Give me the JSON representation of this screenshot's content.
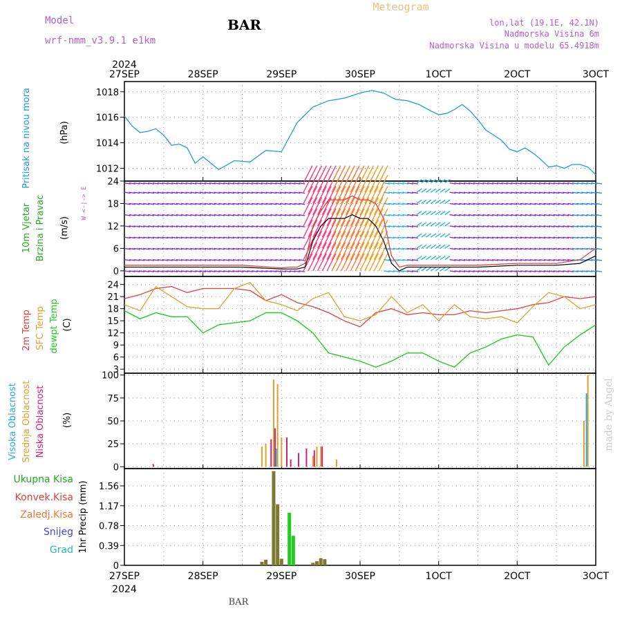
{
  "header": {
    "model_label": "Model",
    "model_name": "wrf-nmm_v3.9.1 e1km",
    "station": "BAR",
    "product": "Meteogram",
    "location": "lon,lat (19.1E, 42.1N)",
    "altitude": "Nadmorska Visina 6m",
    "model_altitude": "Nadmorska Visina u modelu 65.4918m"
  },
  "time_axis": {
    "year": "2024",
    "labels": [
      "27SEP",
      "28SEP",
      "29SEP",
      "30SEP",
      "1OCT",
      "2OCT",
      "3OCT"
    ]
  },
  "footer": {
    "station": "BAR",
    "watermark": "made by Angel"
  },
  "colors": {
    "pressure": "#1e9be0",
    "wind": "#22aa22",
    "t2m": "#e04040",
    "tsfc": "#e0a030",
    "dewpt": "#22cc22",
    "cloud_high": "#2aa8e0",
    "cloud_mid": "#e0a030",
    "cloud_low": "#d02070"
  },
  "chart_data": [
    {
      "type": "line",
      "panel": "pressure",
      "ylabel_name": "Pritisak na nivou mora",
      "ylabel_unit": "(hPa)",
      "ylim": [
        1011,
        1018.8
      ],
      "yticks": [
        "1012",
        "1014",
        "1016",
        "1018"
      ],
      "grid": true,
      "x": [
        0,
        0.1,
        0.2,
        0.3,
        0.4,
        0.5,
        0.6,
        0.7,
        0.8,
        0.9,
        1.0,
        1.2,
        1.4,
        1.6,
        1.8,
        2.0,
        2.2,
        2.4,
        2.6,
        2.8,
        3.0,
        3.15,
        3.3,
        3.45,
        3.6,
        3.75,
        3.9,
        4.0,
        4.1,
        4.2,
        4.3,
        4.4,
        4.5,
        4.6,
        4.7,
        4.8,
        4.9,
        5.0,
        5.1,
        5.2,
        5.3,
        5.4,
        5.5,
        5.6,
        5.7,
        5.8,
        5.9,
        6.0
      ],
      "series": [
        {
          "name": "",
          "values": [
            1016.1,
            1015.3,
            1014.8,
            1014.9,
            1015.1,
            1014.6,
            1013.8,
            1013.9,
            1013.6,
            1012.4,
            1012.9,
            1011.9,
            1012.6,
            1012.5,
            1013.4,
            1013.3,
            1015.6,
            1016.8,
            1017.3,
            1017.5,
            1017.9,
            1018.1,
            1017.9,
            1017.4,
            1017.3,
            1017.0,
            1016.5,
            1016.2,
            1016.3,
            1016.6,
            1017.0,
            1016.5,
            1015.8,
            1015.0,
            1014.6,
            1014.2,
            1013.5,
            1013.3,
            1013.6,
            1013.2,
            1012.7,
            1012.1,
            1012.2,
            1012.0,
            1012.3,
            1012.3,
            1012.1,
            1011.5
          ]
        }
      ]
    },
    {
      "type": "line",
      "panel": "wind",
      "ylabel_name": "10m Vjetar",
      "ylabel_name2": "Brzina i Pravac",
      "ylabel_unit": "(m/s)",
      "compass": "W <-|-> E",
      "ylim": [
        -1.5,
        24
      ],
      "yticks": [
        "0",
        "6",
        "12",
        "18",
        "24"
      ],
      "grid": true,
      "x": [
        0,
        0.5,
        1.0,
        1.5,
        2.0,
        2.1,
        2.2,
        2.3,
        2.4,
        2.5,
        2.6,
        2.7,
        2.8,
        2.9,
        3.0,
        3.1,
        3.2,
        3.3,
        3.4,
        3.5,
        3.6,
        3.8,
        4.0,
        4.5,
        5.0,
        5.5,
        5.8,
        6.0
      ],
      "series": [
        {
          "name": "",
          "values": [
            1,
            1,
            1,
            1,
            0.5,
            0.5,
            0.5,
            1,
            8,
            12,
            14,
            14,
            14,
            15,
            14,
            14,
            12,
            8,
            2,
            0,
            1,
            1,
            1,
            1,
            1.5,
            1.5,
            2,
            4
          ]
        },
        {
          "name": "",
          "values": [
            1.5,
            1.5,
            1.5,
            1.5,
            0.8,
            1,
            1,
            2,
            12,
            16,
            19,
            19,
            19,
            20,
            19,
            19,
            18,
            14,
            4,
            1,
            1.5,
            1.5,
            1.5,
            1.5,
            2,
            2,
            3,
            6
          ]
        }
      ]
    },
    {
      "type": "line",
      "panel": "temperature",
      "ylabel_names": [
        "2m Temp",
        "SFC Temp",
        "dewpt Temp"
      ],
      "ylabel_unit": "(C)",
      "ylim": [
        2,
        26
      ],
      "yticks": [
        "3",
        "6",
        "9",
        "12",
        "15",
        "18",
        "21",
        "24"
      ],
      "grid": true,
      "x": [
        0,
        0.2,
        0.4,
        0.6,
        0.8,
        1.0,
        1.2,
        1.4,
        1.6,
        1.8,
        2.0,
        2.2,
        2.4,
        2.6,
        2.8,
        3.0,
        3.2,
        3.4,
        3.6,
        3.8,
        4.0,
        4.2,
        4.4,
        4.6,
        4.8,
        5.0,
        5.2,
        5.4,
        5.6,
        5.8,
        6.0
      ],
      "series": [
        {
          "name": "",
          "values": [
            20.5,
            21.5,
            23,
            23.5,
            22,
            23,
            23,
            23,
            22.5,
            20,
            21.5,
            19.5,
            18.5,
            17,
            15,
            13.5,
            17,
            18,
            16.5,
            17,
            16.5,
            16.5,
            17.5,
            17,
            17.5,
            18,
            19,
            19.5,
            21,
            20.5,
            21
          ]
        },
        {
          "name": "",
          "values": [
            19,
            17.5,
            23.5,
            21,
            18.5,
            18,
            18,
            23,
            24.5,
            20,
            19,
            17.5,
            20.5,
            22,
            16,
            15,
            16.5,
            21,
            17,
            19,
            15,
            19,
            16,
            15.5,
            16,
            14.5,
            18.5,
            22,
            21,
            18,
            19
          ]
        },
        {
          "name": "",
          "values": [
            17.5,
            15.5,
            17,
            16,
            16,
            12,
            14,
            14.5,
            15,
            17,
            17,
            15,
            12,
            7,
            6,
            5,
            3.5,
            5,
            7,
            7,
            5,
            3.5,
            7,
            8.5,
            10.5,
            11.5,
            11,
            4,
            8.5,
            11.5,
            14
          ]
        }
      ]
    },
    {
      "type": "bar",
      "panel": "cloud",
      "ylabel_names": [
        "Visoka Oblacnost",
        "Srednja Oblacnost",
        "Niska Oblacnost"
      ],
      "ylabel_unit": "(%)",
      "ylim": [
        -2,
        102
      ],
      "yticks": [
        "0",
        "25",
        "50",
        "75",
        "100"
      ],
      "grid": true,
      "x": [
        0.35,
        1.75,
        1.8,
        1.85,
        1.9,
        1.95,
        2.0,
        2.05,
        2.1,
        2.2,
        2.3,
        2.4,
        2.45,
        2.5,
        2.55,
        2.7,
        5.85,
        5.9
      ],
      "series": [
        {
          "name": "",
          "values": [
            0,
            0,
            0,
            0,
            0,
            20,
            0,
            0,
            0,
            0,
            0,
            0,
            0,
            0,
            0,
            0,
            0,
            80
          ]
        },
        {
          "name": "",
          "values": [
            0,
            22,
            25,
            0,
            95,
            90,
            32,
            0,
            0,
            0,
            0,
            12,
            22,
            22,
            0,
            8,
            50,
            100
          ]
        },
        {
          "name": "",
          "values": [
            3,
            0,
            0,
            30,
            42,
            0,
            0,
            32,
            8,
            15,
            20,
            18,
            0,
            22,
            0,
            0,
            0,
            0
          ]
        }
      ]
    },
    {
      "type": "bar",
      "panel": "precip",
      "legend_labels": [
        "Ukupna Kisa",
        "Konvek.Kisa",
        "Zaledj.Kisa",
        "Snijeg",
        "Grad"
      ],
      "legend_colors": [
        "#22aa22",
        "#e04040",
        "#ee7733",
        "#4444dd",
        "#22bbaa"
      ],
      "ylabel_unit": "1hr Precip (mm)",
      "ylim": [
        0,
        1.9
      ],
      "yticks": [
        "0",
        "0.39",
        "0.78",
        "1.17",
        "1.56"
      ],
      "grid": true,
      "x": [
        1.75,
        1.8,
        1.9,
        1.95,
        2.0,
        2.1,
        2.15,
        2.4,
        2.45,
        2.5,
        2.55
      ],
      "series": [
        {
          "name": "",
          "values": [
            0.07,
            0.11,
            1.85,
            1.2,
            0.13,
            1.03,
            0.58,
            0.05,
            0.08,
            0.14,
            0.12
          ]
        }
      ]
    }
  ]
}
